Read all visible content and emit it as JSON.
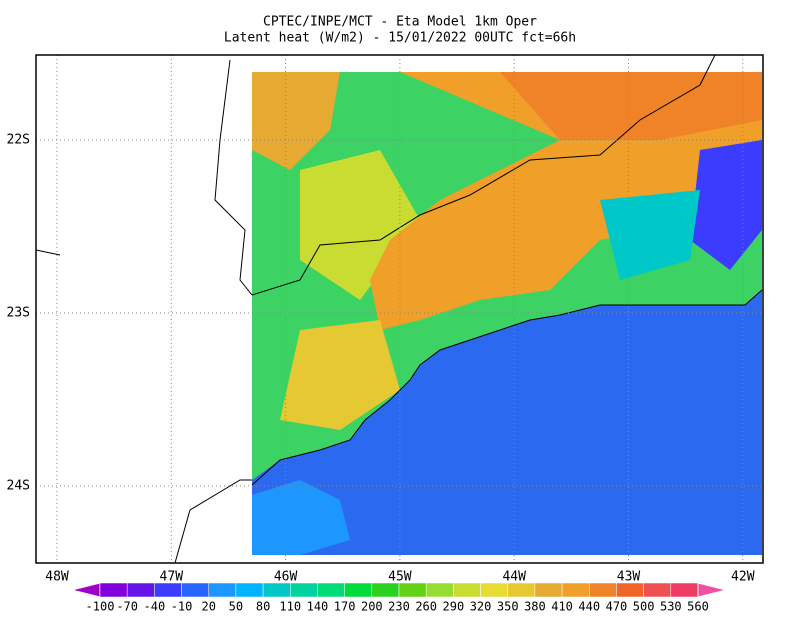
{
  "title": [
    "CPTEC/INPE/MCT -  Eta Model 1km Oper",
    "Latent heat (W/m2) - 15/01/2022 00UTC fct=66h"
  ],
  "map": {
    "lon_labels": [
      "48W",
      "47W",
      "46W",
      "45W",
      "44W",
      "43W",
      "42W"
    ],
    "lat_labels": [
      "22S",
      "23S",
      "24S"
    ]
  },
  "colorbar": {
    "labels": [
      -100,
      -70,
      -40,
      -10,
      20,
      50,
      80,
      110,
      140,
      170,
      200,
      230,
      260,
      290,
      320,
      350,
      380,
      410,
      440,
      470,
      500,
      530,
      560
    ],
    "colors": [
      "#a000c8",
      "#8200dc",
      "#6414e6",
      "#3c3cff",
      "#2864ff",
      "#1e96ff",
      "#00b4ff",
      "#00c8c8",
      "#00d2a0",
      "#00dc78",
      "#00dc3c",
      "#28d21e",
      "#64d214",
      "#96dc32",
      "#c8dc32",
      "#e6dc32",
      "#e6c832",
      "#e6aa32",
      "#f0a028",
      "#f08228",
      "#f06428",
      "#f05050",
      "#f03c64",
      "#f050a0"
    ]
  }
}
